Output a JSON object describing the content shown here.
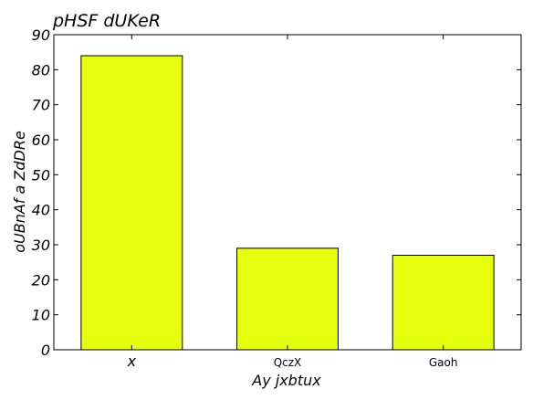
{
  "chart_data": {
    "type": "bar",
    "title": "pHSF dUKeR",
    "xlabel": "Ay jxbtux",
    "ylabel": "oUBnAf a ZdDRe",
    "categories": [
      "x",
      "QczX",
      "Gaoh"
    ],
    "values": [
      84,
      29,
      27
    ],
    "ylim": [
      0,
      90
    ],
    "yticks": [
      0,
      10,
      20,
      30,
      40,
      50,
      60,
      70,
      80,
      90
    ],
    "bar_color": "#e5ff0d",
    "edge_color": "#000000",
    "grid": false,
    "legend": "none"
  }
}
